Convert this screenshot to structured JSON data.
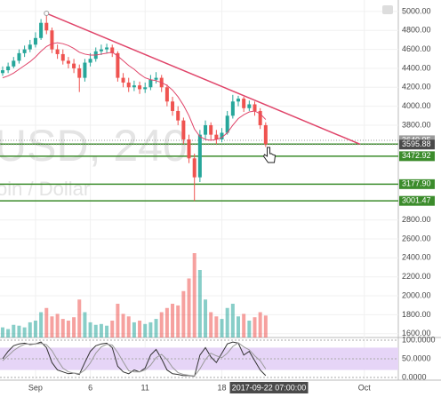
{
  "chart_data": {
    "type": "candlestick",
    "watermark": "USD, 240",
    "watermark_sub": "oin / Dollar",
    "cursor_label": "2017-09-22 07:00:00",
    "xlim": [
      -2.24,
      34.1
    ],
    "xticks": [
      {
        "value": 1,
        "label": "Sep"
      },
      {
        "value": 6,
        "label": "6"
      },
      {
        "value": 11,
        "label": "11"
      },
      {
        "value": 18,
        "label": "18"
      },
      {
        "value": 31,
        "label": "Oct"
      }
    ],
    "cursor_x": 22.3,
    "ylim": [
      1560,
      5121
    ],
    "yticks": [
      {
        "value": 5000,
        "label": "5000.00"
      },
      {
        "value": 4800,
        "label": "4800.00"
      },
      {
        "value": 4600,
        "label": "4600.00"
      },
      {
        "value": 4400,
        "label": "4400.00"
      },
      {
        "value": 4200,
        "label": "4200.00"
      },
      {
        "value": 4000,
        "label": "4000.00"
      },
      {
        "value": 3800,
        "label": "3800.00"
      },
      {
        "value": 2800,
        "label": "2800.00"
      },
      {
        "value": 2600,
        "label": "2600.00"
      },
      {
        "value": 2400,
        "label": "2400.00"
      },
      {
        "value": 2200,
        "label": "2200.00"
      },
      {
        "value": 2000,
        "label": "2000.00"
      },
      {
        "value": 1800,
        "label": "1800.00"
      },
      {
        "value": 1600,
        "label": "1600.00"
      }
    ],
    "price_lines": [
      3600.88,
      3472.92,
      {
        "value": 3177.9,
        "label": "3177.90"
      },
      3001.47
    ],
    "marker_prices": [
      3640.95,
      3595.88
    ],
    "trendline": {
      "x": [
        2,
        30.6
      ],
      "y": [
        4980,
        3600
      ],
      "color": "#e0456a"
    },
    "up_color": "#26a69a",
    "down_color": "#ef5350",
    "x": [
      -2,
      -1.5,
      -1,
      -0.5,
      0,
      0.5,
      1,
      1.5,
      2,
      2.5,
      3,
      3.5,
      4,
      4.5,
      5,
      5.5,
      6,
      6.5,
      7,
      7.5,
      8,
      8.5,
      9,
      9.5,
      10,
      10.5,
      11,
      11.5,
      12,
      12.5,
      13,
      13.5,
      14,
      14.5,
      15,
      15.5,
      16,
      16.5,
      17,
      17.5,
      18,
      18.5,
      19,
      19.5,
      20,
      20.5,
      21,
      21.5,
      22
    ],
    "open": [
      4350,
      4380,
      4420,
      4480,
      4560,
      4600,
      4650,
      4720,
      4880,
      4800,
      4600,
      4550,
      4480,
      4450,
      4400,
      4300,
      4460,
      4500,
      4580,
      4600,
      4620,
      4560,
      4300,
      4250,
      4200,
      4220,
      4180,
      4200,
      4280,
      4300,
      4200,
      4050,
      3950,
      3850,
      3650,
      3450,
      3250,
      3700,
      3800,
      3700,
      3650,
      3720,
      3900,
      4050,
      4080,
      3980,
      4020,
      3950,
      3800
    ],
    "high": [
      4420,
      4460,
      4520,
      4600,
      4640,
      4700,
      4780,
      4920,
      4980,
      4830,
      4650,
      4600,
      4520,
      4500,
      4440,
      4500,
      4560,
      4620,
      4650,
      4660,
      4650,
      4580,
      4350,
      4300,
      4270,
      4260,
      4250,
      4330,
      4360,
      4330,
      4230,
      4100,
      4000,
      3880,
      3700,
      3500,
      3750,
      3850,
      3830,
      3750,
      3770,
      3950,
      4120,
      4110,
      4100,
      4060,
      4050,
      3980,
      3830
    ],
    "low": [
      4320,
      4350,
      4400,
      4450,
      4520,
      4570,
      4620,
      4700,
      4760,
      4560,
      4500,
      4440,
      4400,
      4350,
      4150,
      4260,
      4420,
      4470,
      4540,
      4560,
      4520,
      4260,
      4200,
      4150,
      4160,
      4130,
      4140,
      4170,
      4240,
      4150,
      4000,
      3900,
      3800,
      3600,
      3400,
      3000,
      3200,
      3650,
      3640,
      3600,
      3620,
      3700,
      3870,
      4000,
      3940,
      3950,
      3900,
      3760,
      3570
    ],
    "close": [
      4380,
      4420,
      4480,
      4560,
      4600,
      4650,
      4720,
      4880,
      4800,
      4600,
      4550,
      4480,
      4450,
      4400,
      4300,
      4460,
      4500,
      4580,
      4600,
      4620,
      4560,
      4300,
      4250,
      4200,
      4220,
      4180,
      4200,
      4280,
      4300,
      4200,
      4050,
      3950,
      3850,
      3650,
      3450,
      3250,
      3700,
      3800,
      3700,
      3650,
      3720,
      3900,
      4050,
      4080,
      3980,
      4020,
      3950,
      3800,
      3600
    ],
    "ma": {
      "color": "#e0456a",
      "values": [
        4300,
        4320,
        4350,
        4390,
        4430,
        4470,
        4520,
        4580,
        4630,
        4660,
        4670,
        4660,
        4640,
        4610,
        4570,
        4550,
        4540,
        4540,
        4550,
        4560,
        4570,
        4530,
        4480,
        4430,
        4390,
        4340,
        4300,
        4280,
        4270,
        4250,
        4220,
        4170,
        4100,
        4010,
        3900,
        3760,
        3680,
        3650,
        3640,
        3650,
        3670,
        3720,
        3800,
        3870,
        3910,
        3940,
        3950,
        3920,
        3860
      ]
    },
    "volume_ylim": [
      0,
      100
    ],
    "volume": [
      12,
      10,
      15,
      14,
      12,
      18,
      20,
      30,
      35,
      25,
      28,
      22,
      20,
      24,
      45,
      30,
      18,
      15,
      16,
      14,
      20,
      40,
      28,
      25,
      18,
      20,
      16,
      18,
      22,
      30,
      35,
      40,
      38,
      55,
      70,
      100,
      80,
      45,
      30,
      25,
      22,
      35,
      40,
      25,
      28,
      20,
      24,
      30,
      26
    ],
    "stoch_ylim": [
      0,
      100
    ],
    "stoch_ticks": [
      {
        "value": 100,
        "label": "100.0000"
      },
      {
        "value": 50,
        "label": "50.0000"
      },
      {
        "value": 0,
        "label": "0.0000"
      }
    ],
    "stoch_band": [
      20,
      80
    ],
    "stoch_k": {
      "color": "#333333",
      "values": [
        50,
        70,
        85,
        90,
        92,
        88,
        90,
        95,
        80,
        40,
        20,
        15,
        10,
        12,
        8,
        40,
        70,
        85,
        90,
        92,
        80,
        30,
        15,
        10,
        20,
        15,
        25,
        60,
        75,
        50,
        20,
        10,
        8,
        5,
        5,
        3,
        60,
        80,
        55,
        40,
        65,
        90,
        95,
        92,
        60,
        70,
        45,
        20,
        5
      ]
    },
    "stoch_d": {
      "color": "#9a9a9a",
      "values": [
        45,
        58,
        72,
        82,
        89,
        90,
        90,
        91,
        88,
        72,
        47,
        25,
        15,
        12,
        10,
        20,
        39,
        65,
        82,
        89,
        87,
        67,
        42,
        18,
        15,
        15,
        20,
        33,
        53,
        62,
        48,
        27,
        13,
        8,
        6,
        4,
        23,
        48,
        65,
        58,
        53,
        65,
        83,
        93,
        82,
        74,
        58,
        45,
        23
      ]
    }
  }
}
